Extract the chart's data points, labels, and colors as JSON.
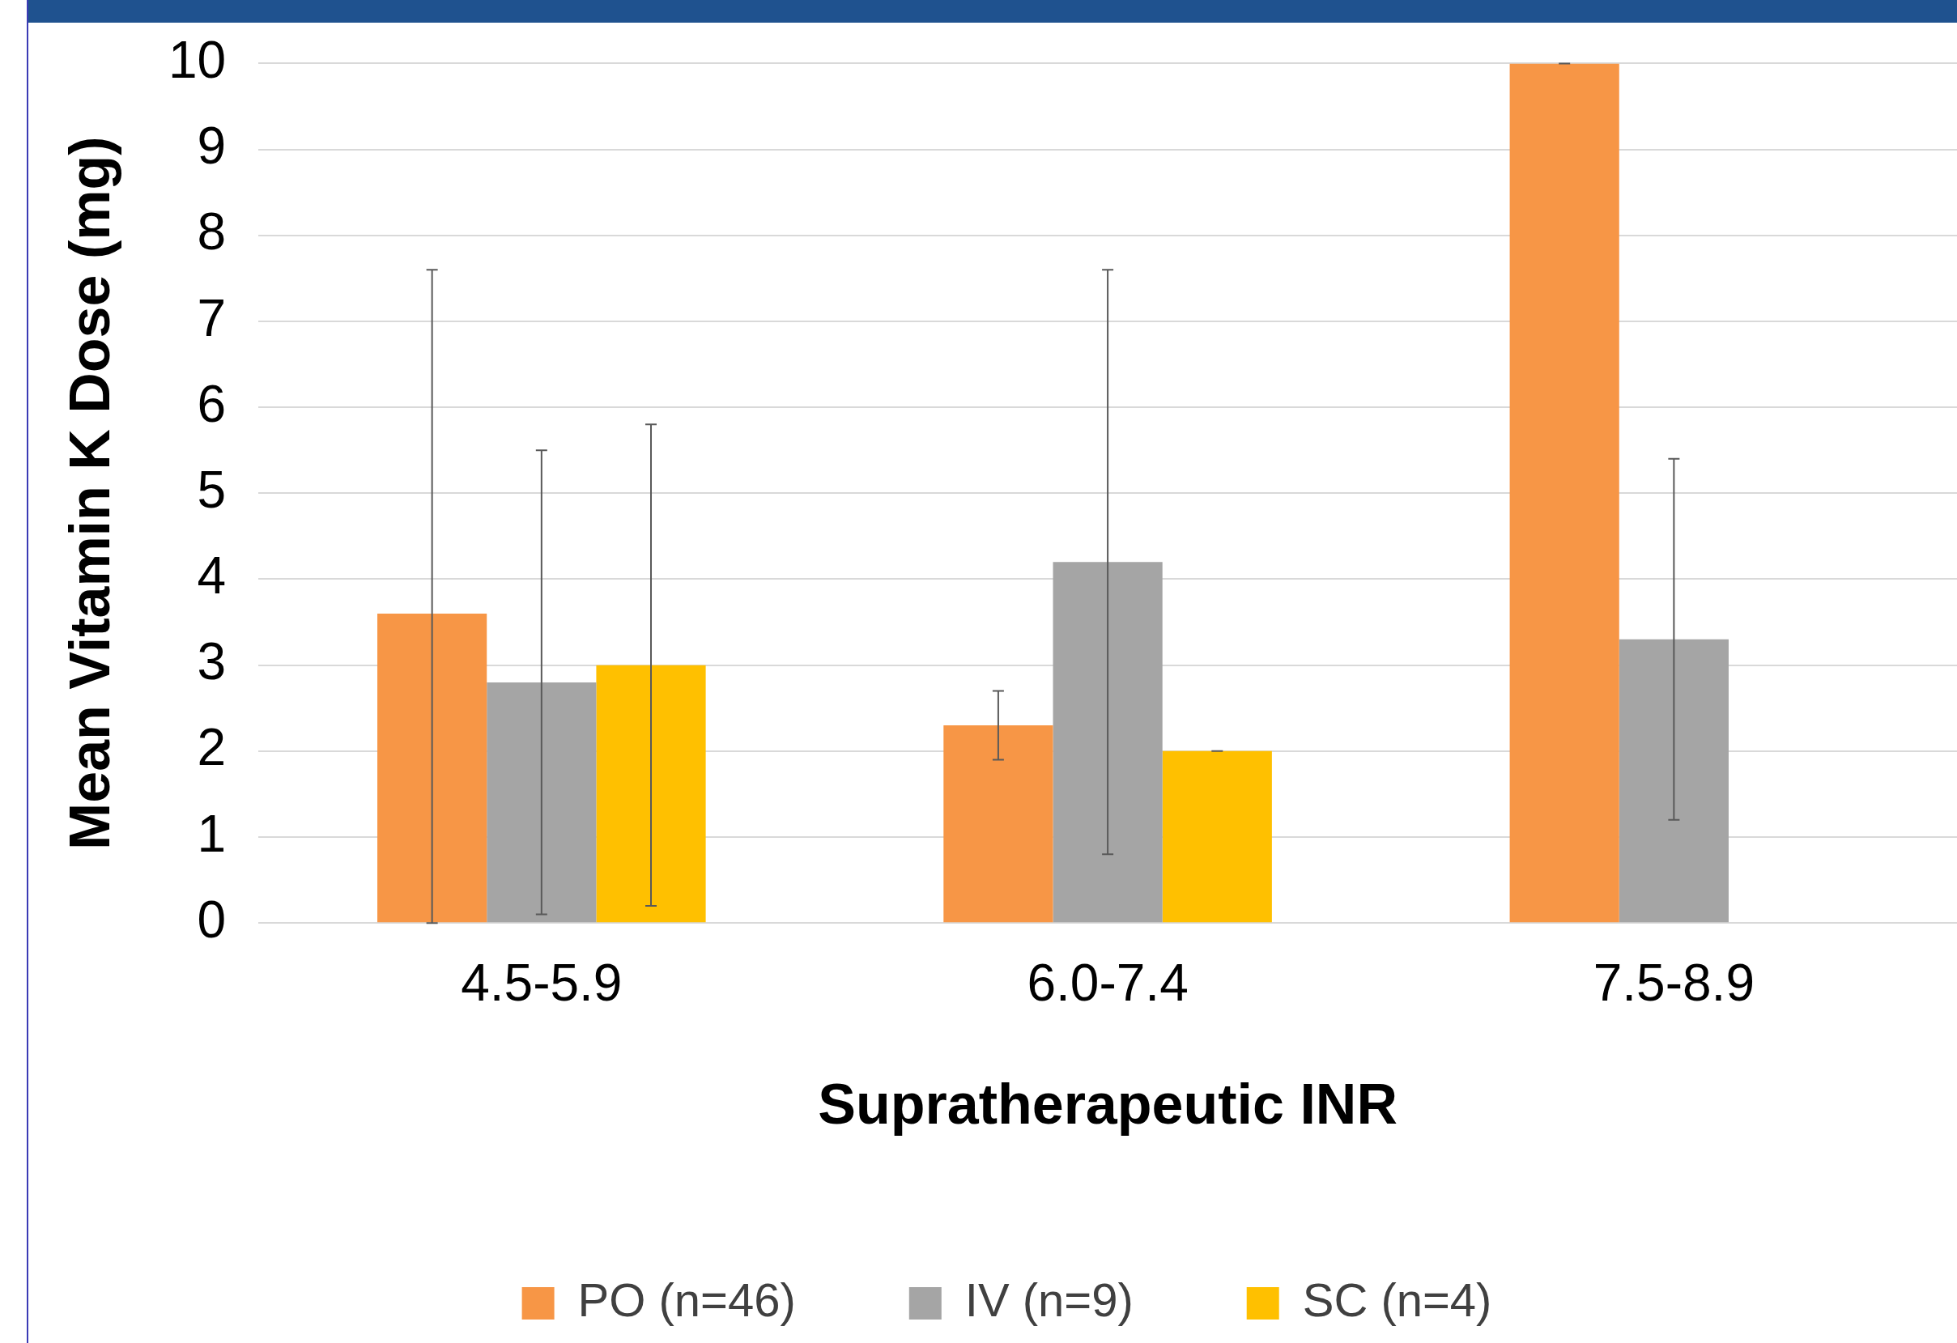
{
  "chart_data": {
    "type": "bar",
    "xlabel": "Supratherapeutic INR",
    "ylabel": "Mean Vitamin K Dose (mg)",
    "categories": [
      "4.5-5.9",
      "6.0-7.4",
      "7.5-8.9"
    ],
    "series": [
      {
        "name": "PO (n=46)",
        "color": "#f79646",
        "values": [
          3.6,
          2.3,
          10
        ],
        "errors": [
          [
            0,
            7.6
          ],
          [
            1.9,
            2.7
          ],
          [
            10,
            10
          ]
        ]
      },
      {
        "name": "IV (n=9)",
        "color": "#a5a5a5",
        "values": [
          2.8,
          4.2,
          3.3
        ],
        "errors": [
          [
            0.1,
            5.5
          ],
          [
            0.8,
            7.6
          ],
          [
            1.2,
            5.4
          ]
        ]
      },
      {
        "name": "SC (n=4)",
        "color": "#ffc000",
        "values": [
          3.0,
          2.0,
          null
        ],
        "errors": [
          [
            0.2,
            5.8
          ],
          [
            2,
            2
          ],
          null
        ]
      }
    ],
    "ylim": [
      0,
      10
    ],
    "yticks": [
      0,
      1,
      2,
      3,
      4,
      5,
      6,
      7,
      8,
      9,
      10
    ],
    "grid": "y",
    "legend": "bottom"
  }
}
